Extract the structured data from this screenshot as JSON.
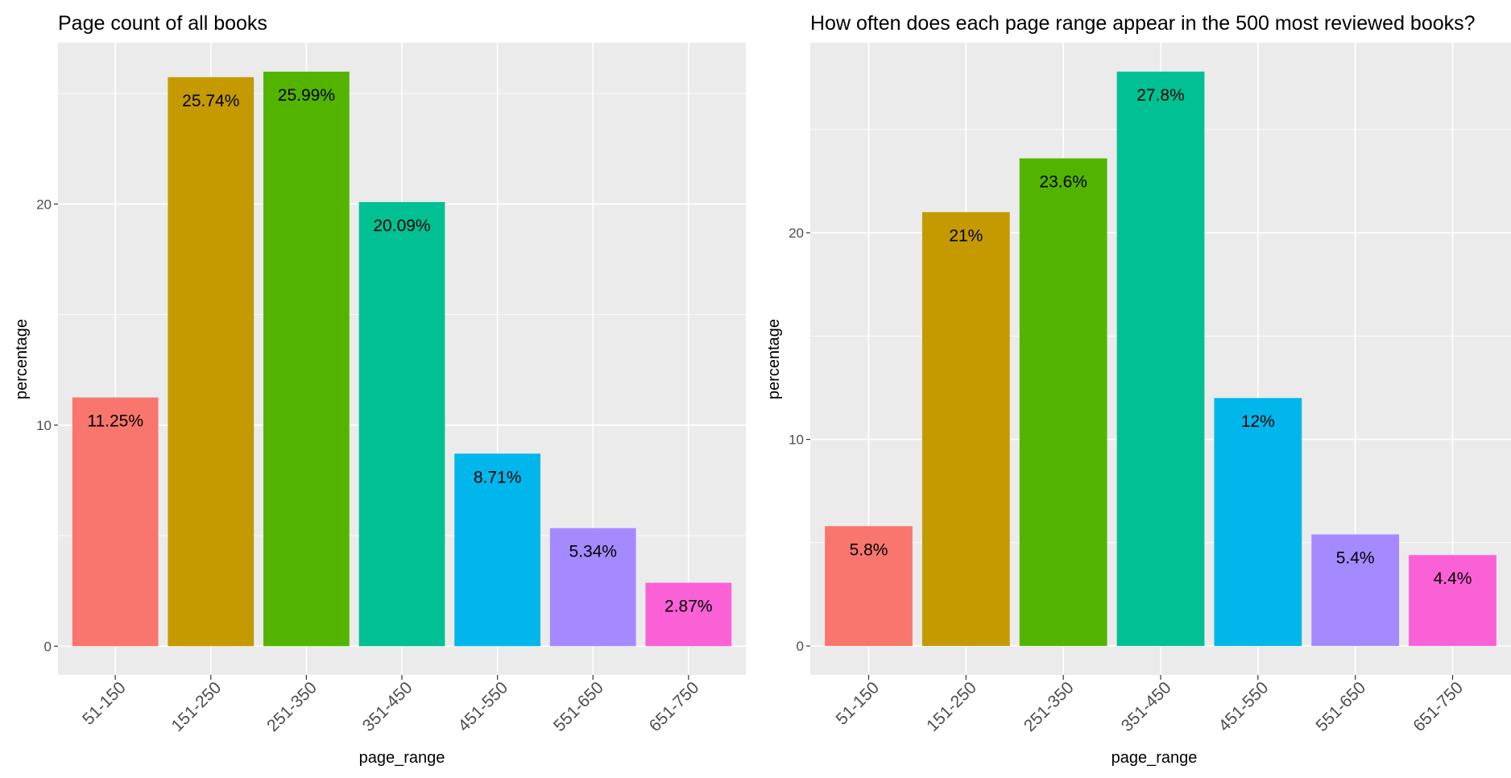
{
  "chart_data": [
    {
      "type": "bar",
      "title": "Page count of all books",
      "xlabel": "page_range",
      "ylabel": "percentage",
      "categories": [
        "51-150",
        "151-250",
        "251-350",
        "351-450",
        "451-550",
        "551-650",
        "651-750"
      ],
      "values": [
        11.25,
        25.74,
        25.99,
        20.09,
        8.71,
        5.34,
        2.87
      ],
      "labels": [
        "11.25%",
        "25.74%",
        "25.99%",
        "20.09%",
        "8.71%",
        "5.34%",
        "2.87%"
      ],
      "colors": [
        "#F8766D",
        "#C49A00",
        "#53B400",
        "#00C094",
        "#00B6EB",
        "#A58AFF",
        "#FB61D7"
      ],
      "yticks": [
        0,
        10,
        20
      ],
      "ylim": [
        -1.3,
        27.3
      ],
      "grid": true,
      "legend": "none",
      "background": "#EBEBEB"
    },
    {
      "type": "bar",
      "title": "How often does each page range appear in the 500 most reviewed books?",
      "xlabel": "page_range",
      "ylabel": "percentage",
      "categories": [
        "51-150",
        "151-250",
        "251-350",
        "351-450",
        "451-550",
        "551-650",
        "651-750"
      ],
      "values": [
        5.8,
        21,
        23.6,
        27.8,
        12,
        5.4,
        4.4
      ],
      "labels": [
        "5.8%",
        "21%",
        "23.6%",
        "27.8%",
        "12%",
        "5.4%",
        "4.4%"
      ],
      "colors": [
        "#F8766D",
        "#C49A00",
        "#53B400",
        "#00C094",
        "#00B6EB",
        "#A58AFF",
        "#FB61D7"
      ],
      "yticks": [
        0,
        10,
        20
      ],
      "ylim": [
        -1.4,
        29.2
      ],
      "grid": true,
      "legend": "none",
      "background": "#EBEBEB"
    }
  ]
}
